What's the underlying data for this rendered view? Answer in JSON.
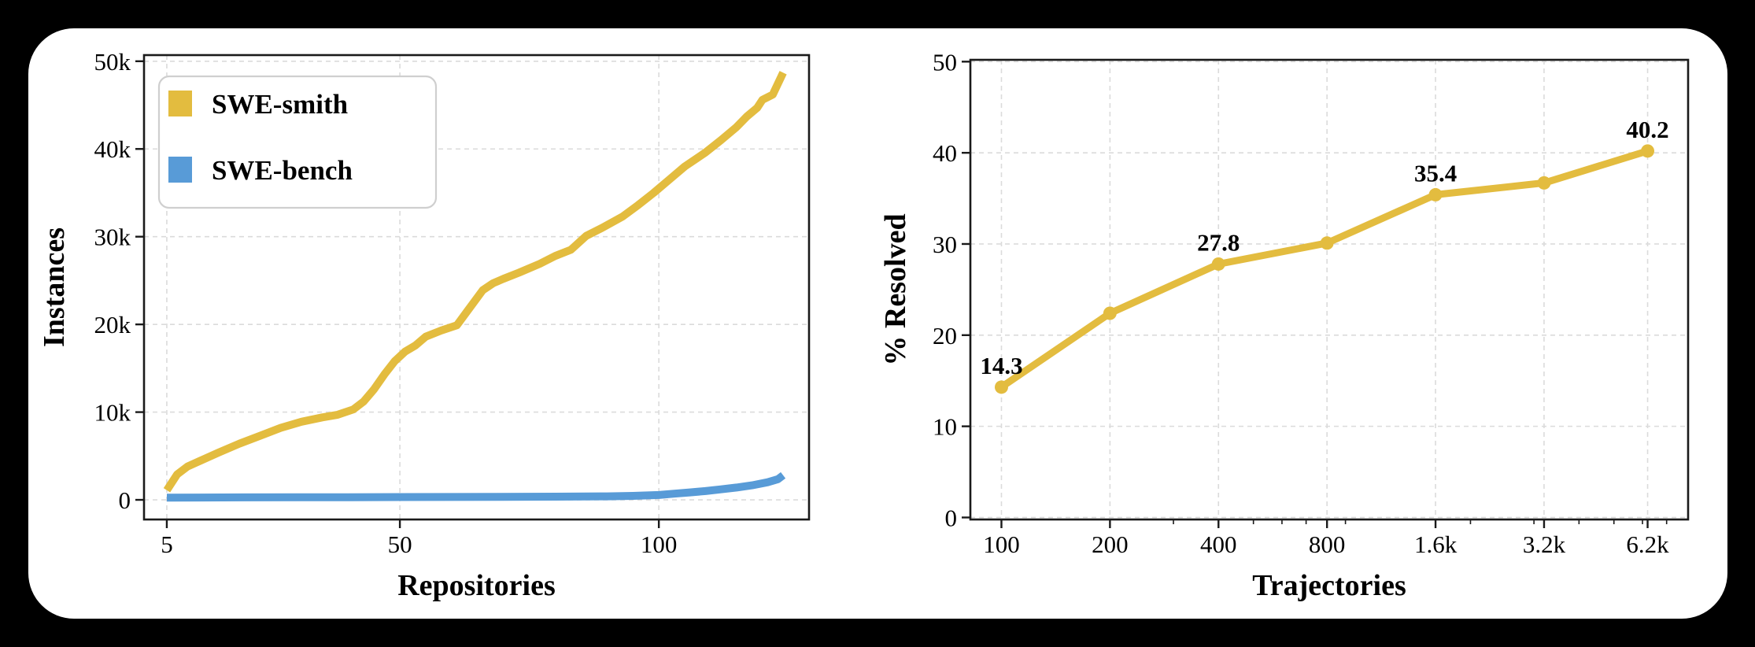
{
  "page": {
    "background_color": "#000000",
    "card_color": "#FFFFFF",
    "grid_color": "#DBDBDB",
    "spine_color": "#1A1A1A",
    "text_color": "#000000",
    "legend_border_color": "#CFCFCF"
  },
  "chart_data": [
    {
      "id": "instances-vs-repositories",
      "type": "line",
      "xlabel": "Repositories",
      "ylabel": "Instances",
      "x_scale": "linear",
      "grid": true,
      "legend_position": "upper left",
      "xlim": [
        0.6,
        129
      ],
      "ylim": [
        -2240,
        50700
      ],
      "x_ticks": [
        {
          "v": 5,
          "label": "5"
        },
        {
          "v": 50,
          "label": "50"
        },
        {
          "v": 100,
          "label": "100"
        }
      ],
      "y_ticks": [
        {
          "v": 0,
          "label": "0"
        },
        {
          "v": 10000,
          "label": "10k"
        },
        {
          "v": 20000,
          "label": "20k"
        },
        {
          "v": 30000,
          "label": "30k"
        },
        {
          "v": 40000,
          "label": "40k"
        },
        {
          "v": 50000,
          "label": "50k"
        }
      ],
      "x_minor_ticks": [],
      "series": [
        {
          "name": "SWE-smith",
          "color": "#E3BC3F",
          "line_width": 10,
          "marker": null,
          "points": [
            [
              5,
              1100
            ],
            [
              7,
              2900
            ],
            [
              9,
              3800
            ],
            [
              12,
              4600
            ],
            [
              15,
              5400
            ],
            [
              19,
              6400
            ],
            [
              23,
              7300
            ],
            [
              27,
              8200
            ],
            [
              31,
              8900
            ],
            [
              35,
              9400
            ],
            [
              38,
              9700
            ],
            [
              41,
              10300
            ],
            [
              43,
              11200
            ],
            [
              45,
              12600
            ],
            [
              47,
              14300
            ],
            [
              49,
              15800
            ],
            [
              51,
              16900
            ],
            [
              53,
              17600
            ],
            [
              55,
              18600
            ],
            [
              58,
              19300
            ],
            [
              61,
              19900
            ],
            [
              63,
              21500
            ],
            [
              66,
              23900
            ],
            [
              68,
              24700
            ],
            [
              70,
              25200
            ],
            [
              73,
              25900
            ],
            [
              77,
              26900
            ],
            [
              80,
              27800
            ],
            [
              83,
              28500
            ],
            [
              86,
              30100
            ],
            [
              89,
              31000
            ],
            [
              93,
              32300
            ],
            [
              96,
              33600
            ],
            [
              99,
              35000
            ],
            [
              102,
              36500
            ],
            [
              105,
              38000
            ],
            [
              109,
              39600
            ],
            [
              112,
              41000
            ],
            [
              115,
              42500
            ],
            [
              117,
              43700
            ],
            [
              119,
              44700
            ],
            [
              120,
              45600
            ],
            [
              122,
              46200
            ],
            [
              124,
              48700
            ]
          ]
        },
        {
          "name": "SWE-bench",
          "color": "#589BD7",
          "line_width": 10,
          "marker": null,
          "points": [
            [
              5,
              250
            ],
            [
              20,
              280
            ],
            [
              40,
              300
            ],
            [
              60,
              330
            ],
            [
              80,
              360
            ],
            [
              90,
              400
            ],
            [
              95,
              450
            ],
            [
              100,
              550
            ],
            [
              103,
              700
            ],
            [
              106,
              850
            ],
            [
              109,
              1000
            ],
            [
              112,
              1200
            ],
            [
              115,
              1400
            ],
            [
              118,
              1650
            ],
            [
              121,
              2000
            ],
            [
              123,
              2350
            ],
            [
              124,
              2800
            ]
          ]
        }
      ],
      "annotations": []
    },
    {
      "id": "resolved-vs-trajectories",
      "type": "line",
      "xlabel": "Trajectories",
      "ylabel": "% Resolved",
      "x_scale": "log2",
      "grid": true,
      "legend_position": null,
      "xlim": [
        82,
        8030
      ],
      "ylim": [
        -0.22,
        50.2
      ],
      "x_ticks": [
        {
          "v": 100,
          "label": "100"
        },
        {
          "v": 200,
          "label": "200"
        },
        {
          "v": 400,
          "label": "400"
        },
        {
          "v": 800,
          "label": "800"
        },
        {
          "v": 1600,
          "label": "1.6k"
        },
        {
          "v": 3200,
          "label": "3.2k"
        },
        {
          "v": 6200,
          "label": "6.2k"
        }
      ],
      "y_ticks": [
        {
          "v": 0,
          "label": "0"
        },
        {
          "v": 10,
          "label": "10"
        },
        {
          "v": 20,
          "label": "20"
        },
        {
          "v": 30,
          "label": "30"
        },
        {
          "v": 40,
          "label": "40"
        },
        {
          "v": 50,
          "label": "50"
        }
      ],
      "x_minor_ticks": [
        300,
        500,
        600,
        700,
        900,
        2000,
        3000,
        4000,
        5000,
        6000,
        7000
      ],
      "series": [
        {
          "name": "SWE-smith",
          "color": "#E3BC3F",
          "line_width": 9,
          "marker": "circle",
          "marker_size": 8.5,
          "points": [
            [
              100,
              14.3
            ],
            [
              200,
              22.4
            ],
            [
              400,
              27.8
            ],
            [
              800,
              30.1
            ],
            [
              1600,
              35.4
            ],
            [
              3200,
              36.7
            ],
            [
              6200,
              40.2
            ]
          ]
        }
      ],
      "annotations": [
        {
          "x": 100,
          "y": 14.3,
          "text": "14.3"
        },
        {
          "x": 400,
          "y": 27.8,
          "text": "27.8"
        },
        {
          "x": 1600,
          "y": 35.4,
          "text": "35.4"
        },
        {
          "x": 6200,
          "y": 40.2,
          "text": "40.2"
        }
      ]
    }
  ]
}
